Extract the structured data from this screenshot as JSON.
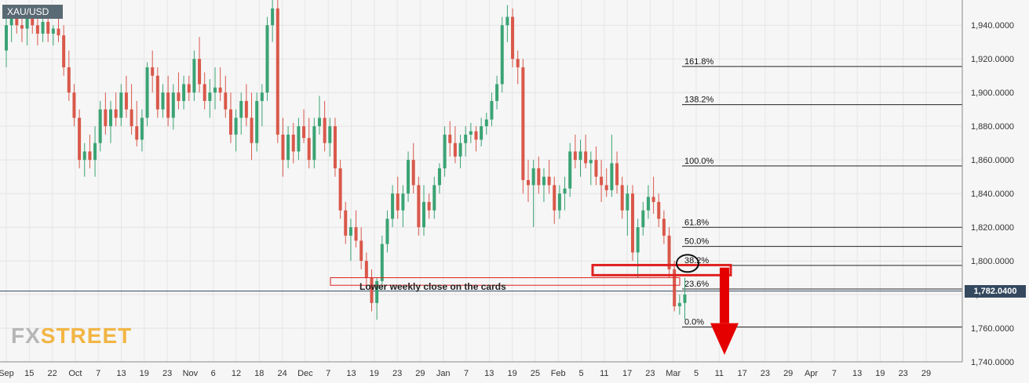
{
  "symbol": "XAU/USD",
  "current_price_label": "1,782.0400",
  "annotation": "Lower weekly close on the cards",
  "logo": {
    "part1": "FX",
    "part2": "STREET"
  },
  "colors": {
    "up": "#3aa374",
    "down": "#d9584a",
    "fib_line": "#222222",
    "zone": "#e02020",
    "arrow": "#e50000",
    "price_line": "#34495e"
  },
  "chart_data": {
    "type": "candlestick",
    "ylim": [
      1740,
      1955
    ],
    "y_ticks": [
      1740,
      1760,
      1780,
      1800,
      1820,
      1840,
      1860,
      1880,
      1900,
      1920,
      1940
    ],
    "y_tick_labels": [
      "1,740.0000",
      "1,760.0000",
      "1,780.0000",
      "1,800.0000",
      "1,820.0000",
      "1,840.0000",
      "1,860.0000",
      "1,880.0000",
      "1,900.0000",
      "1,920.0000",
      "1,940.0000"
    ],
    "x_tick_labels": [
      "Sep",
      "15",
      "22",
      "Oct",
      "7",
      "13",
      "19",
      "23",
      "Nov",
      "6",
      "12",
      "18",
      "24",
      "Dec",
      "7",
      "13",
      "19",
      "23",
      "29",
      "Jan",
      "7",
      "13",
      "19",
      "25",
      "Feb",
      "5",
      "11",
      "17",
      "23",
      "Mar",
      "5",
      "11",
      "17",
      "23",
      "29",
      "Apr",
      "7",
      "13",
      "19",
      "23",
      "29"
    ],
    "current_price": 1782.04,
    "fib_levels": [
      {
        "label": "161.8%",
        "value": 1915.5
      },
      {
        "label": "138.2%",
        "value": 1892.8
      },
      {
        "label": "100.0%",
        "value": 1856.4
      },
      {
        "label": "61.8%",
        "value": 1819.9
      },
      {
        "label": "50.0%",
        "value": 1808.6
      },
      {
        "label": "38.2%",
        "value": 1797.3
      },
      {
        "label": "23.6%",
        "value": 1783.3
      },
      {
        "label": "0.0%",
        "value": 1760.7
      }
    ],
    "resistance_zone": [
      1791.5,
      1797.5
    ],
    "candles": [
      [
        1925,
        1945,
        1915,
        1940
      ],
      [
        1940,
        1950,
        1930,
        1945
      ],
      [
        1945,
        1950,
        1935,
        1940
      ],
      [
        1940,
        1946,
        1930,
        1938
      ],
      [
        1938,
        1948,
        1928,
        1945
      ],
      [
        1945,
        1950,
        1935,
        1940
      ],
      [
        1940,
        1944,
        1928,
        1935
      ],
      [
        1935,
        1945,
        1930,
        1942
      ],
      [
        1942,
        1948,
        1930,
        1935
      ],
      [
        1935,
        1940,
        1928,
        1938
      ],
      [
        1938,
        1944,
        1930,
        1934
      ],
      [
        1934,
        1940,
        1910,
        1915
      ],
      [
        1915,
        1925,
        1895,
        1900
      ],
      [
        1900,
        1905,
        1880,
        1885
      ],
      [
        1885,
        1890,
        1855,
        1860
      ],
      [
        1860,
        1870,
        1850,
        1865
      ],
      [
        1865,
        1875,
        1855,
        1860
      ],
      [
        1860,
        1880,
        1850,
        1870
      ],
      [
        1870,
        1895,
        1865,
        1890
      ],
      [
        1890,
        1900,
        1875,
        1880
      ],
      [
        1880,
        1895,
        1870,
        1890
      ],
      [
        1890,
        1900,
        1880,
        1885
      ],
      [
        1885,
        1905,
        1880,
        1900
      ],
      [
        1900,
        1910,
        1885,
        1890
      ],
      [
        1890,
        1905,
        1875,
        1880
      ],
      [
        1880,
        1895,
        1868,
        1872
      ],
      [
        1872,
        1890,
        1865,
        1885
      ],
      [
        1885,
        1918,
        1880,
        1915
      ],
      [
        1915,
        1925,
        1900,
        1910
      ],
      [
        1910,
        1915,
        1885,
        1890
      ],
      [
        1890,
        1905,
        1885,
        1900
      ],
      [
        1900,
        1910,
        1880,
        1885
      ],
      [
        1885,
        1905,
        1878,
        1900
      ],
      [
        1900,
        1912,
        1890,
        1895
      ],
      [
        1895,
        1910,
        1890,
        1905
      ],
      [
        1905,
        1910,
        1895,
        1900
      ],
      [
        1900,
        1925,
        1895,
        1920
      ],
      [
        1920,
        1933,
        1900,
        1905
      ],
      [
        1905,
        1912,
        1890,
        1895
      ],
      [
        1895,
        1908,
        1885,
        1900
      ],
      [
        1900,
        1915,
        1890,
        1903
      ],
      [
        1903,
        1915,
        1895,
        1900
      ],
      [
        1900,
        1910,
        1885,
        1890
      ],
      [
        1890,
        1900,
        1870,
        1875
      ],
      [
        1875,
        1890,
        1865,
        1885
      ],
      [
        1885,
        1900,
        1875,
        1895
      ],
      [
        1895,
        1905,
        1880,
        1885
      ],
      [
        1885,
        1900,
        1860,
        1870
      ],
      [
        1870,
        1900,
        1865,
        1895
      ],
      [
        1895,
        1905,
        1880,
        1900
      ],
      [
        1900,
        1945,
        1895,
        1940
      ],
      [
        1940,
        1955,
        1930,
        1950
      ],
      [
        1950,
        1955,
        1870,
        1875
      ],
      [
        1875,
        1885,
        1850,
        1860
      ],
      [
        1860,
        1880,
        1855,
        1875
      ],
      [
        1875,
        1882,
        1858,
        1865
      ],
      [
        1865,
        1885,
        1860,
        1880
      ],
      [
        1880,
        1890,
        1870,
        1873
      ],
      [
        1873,
        1885,
        1855,
        1860
      ],
      [
        1860,
        1885,
        1855,
        1880
      ],
      [
        1880,
        1898,
        1875,
        1885
      ],
      [
        1885,
        1895,
        1865,
        1870
      ],
      [
        1870,
        1885,
        1862,
        1880
      ],
      [
        1880,
        1885,
        1850,
        1855
      ],
      [
        1855,
        1860,
        1825,
        1830
      ],
      [
        1830,
        1835,
        1810,
        1815
      ],
      [
        1815,
        1825,
        1800,
        1820
      ],
      [
        1820,
        1830,
        1808,
        1812
      ],
      [
        1812,
        1820,
        1795,
        1800
      ],
      [
        1800,
        1805,
        1785,
        1790
      ],
      [
        1790,
        1795,
        1770,
        1775
      ],
      [
        1775,
        1790,
        1765,
        1788
      ],
      [
        1788,
        1815,
        1783,
        1810
      ],
      [
        1810,
        1830,
        1805,
        1825
      ],
      [
        1825,
        1845,
        1820,
        1840
      ],
      [
        1840,
        1850,
        1825,
        1830
      ],
      [
        1830,
        1845,
        1820,
        1840
      ],
      [
        1840,
        1865,
        1835,
        1860
      ],
      [
        1860,
        1870,
        1840,
        1845
      ],
      [
        1845,
        1850,
        1815,
        1820
      ],
      [
        1820,
        1845,
        1815,
        1835
      ],
      [
        1835,
        1840,
        1825,
        1830
      ],
      [
        1830,
        1850,
        1825,
        1845
      ],
      [
        1845,
        1858,
        1840,
        1855
      ],
      [
        1855,
        1880,
        1850,
        1875
      ],
      [
        1875,
        1883,
        1862,
        1870
      ],
      [
        1870,
        1880,
        1858,
        1862
      ],
      [
        1862,
        1875,
        1855,
        1870
      ],
      [
        1870,
        1880,
        1862,
        1875
      ],
      [
        1875,
        1882,
        1870,
        1877
      ],
      [
        1877,
        1880,
        1865,
        1872
      ],
      [
        1872,
        1885,
        1868,
        1880
      ],
      [
        1880,
        1888,
        1875,
        1884
      ],
      [
        1884,
        1900,
        1880,
        1895
      ],
      [
        1895,
        1910,
        1890,
        1905
      ],
      [
        1905,
        1945,
        1900,
        1940
      ],
      [
        1940,
        1952,
        1930,
        1945
      ],
      [
        1945,
        1950,
        1915,
        1920
      ],
      [
        1920,
        1925,
        1905,
        1915
      ],
      [
        1915,
        1920,
        1840,
        1848
      ],
      [
        1848,
        1860,
        1835,
        1845
      ],
      [
        1845,
        1860,
        1820,
        1855
      ],
      [
        1855,
        1862,
        1840,
        1845
      ],
      [
        1845,
        1855,
        1835,
        1850
      ],
      [
        1850,
        1860,
        1840,
        1845
      ],
      [
        1845,
        1850,
        1822,
        1830
      ],
      [
        1830,
        1845,
        1825,
        1840
      ],
      [
        1840,
        1850,
        1830,
        1843
      ],
      [
        1843,
        1870,
        1838,
        1865
      ],
      [
        1865,
        1875,
        1855,
        1860
      ],
      [
        1860,
        1872,
        1850,
        1865
      ],
      [
        1865,
        1875,
        1855,
        1858
      ],
      [
        1858,
        1865,
        1845,
        1860
      ],
      [
        1860,
        1868,
        1845,
        1850
      ],
      [
        1850,
        1860,
        1835,
        1845
      ],
      [
        1845,
        1855,
        1838,
        1842
      ],
      [
        1842,
        1875,
        1838,
        1858
      ],
      [
        1858,
        1865,
        1840,
        1845
      ],
      [
        1845,
        1850,
        1825,
        1830
      ],
      [
        1830,
        1845,
        1815,
        1840
      ],
      [
        1840,
        1845,
        1800,
        1805
      ],
      [
        1805,
        1825,
        1790,
        1820
      ],
      [
        1820,
        1835,
        1815,
        1830
      ],
      [
        1830,
        1845,
        1825,
        1838
      ],
      [
        1838,
        1850,
        1828,
        1835
      ],
      [
        1835,
        1840,
        1820,
        1825
      ],
      [
        1825,
        1830,
        1810,
        1815
      ],
      [
        1815,
        1820,
        1790,
        1795
      ],
      [
        1795,
        1800,
        1770,
        1773
      ],
      [
        1773,
        1780,
        1768,
        1775
      ],
      [
        1775,
        1790,
        1765,
        1780
      ]
    ]
  }
}
